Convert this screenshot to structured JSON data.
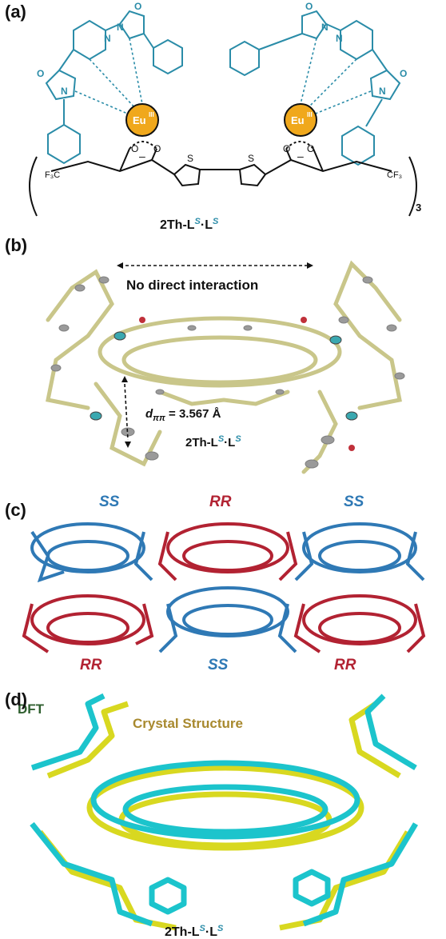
{
  "panels": {
    "a": {
      "label": "(a)",
      "metal_left": "Eu",
      "metal_right": "Eu",
      "metal_ox": "III",
      "charge": "–",
      "cf3_left": "F₃C",
      "cf3_right": "CF₃",
      "subscript": "3",
      "atoms": {
        "N": "N",
        "O": "O",
        "S": "S"
      },
      "compound_main": "2Th-L",
      "compound_dot": "·L",
      "compound_sup": "S"
    },
    "b": {
      "label": "(b)",
      "annotation": "No direct interaction",
      "distance_symbol": "d",
      "distance_sub": "ππ",
      "distance_value": " = 3.567 Å",
      "compound_main": "2Th-L",
      "compound_dot": "·L",
      "compound_sup": "S"
    },
    "c": {
      "label": "(c)",
      "tag_ss": "SS",
      "tag_rr": "RR"
    },
    "d": {
      "label": "(d)",
      "dft": "DFT",
      "crystal": "Crystal Structure",
      "compound_main": "2Th-L",
      "compound_dot": "·L",
      "compound_sup": "S"
    }
  },
  "colors": {
    "ligand": "#2a8ca8",
    "eu_fill": "#f0a81c",
    "ortep_bond": "#d6d49a",
    "ortep_atom": "#9a9a9a",
    "ss_blue": "#2f79b5",
    "rr_red": "#b22232",
    "dft_cyan": "#1cc4cc",
    "crystal_yellow": "#d8d820",
    "dft_label": "#2f5f2f",
    "crystal_label": "#a8892e"
  }
}
